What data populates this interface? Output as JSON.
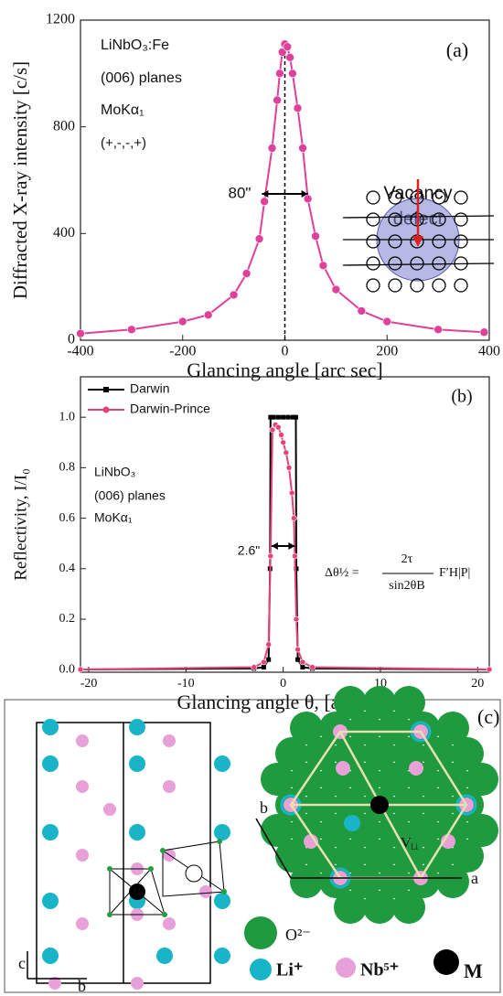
{
  "chart_data": [
    {
      "type": "line",
      "ylabel": "Diffracted X-ray intensity [c/s]",
      "xlabel": "Glancing angle [arc sec]",
      "xlim": [
        -400,
        400
      ],
      "ylim": [
        0,
        1200
      ],
      "xticks": [
        -400,
        -200,
        0,
        200,
        400
      ],
      "yticks": [
        0,
        400,
        800,
        1200
      ],
      "annotations": [
        "LiNbO₃:Fe",
        "(006) planes",
        "MoKα₁",
        "(+,-,-,+)",
        "(a)",
        "Vacancy",
        "defect",
        "80\""
      ],
      "series": [
        {
          "name": "LiNbO₃:Fe",
          "color": "#e0409a",
          "marker": "circle",
          "x": [
            -400,
            -300,
            -200,
            -150,
            -100,
            -75,
            -50,
            -40,
            -25,
            -15,
            -10,
            -5,
            0,
            5,
            10,
            15,
            25,
            35,
            45,
            60,
            75,
            100,
            150,
            200,
            300,
            390
          ],
          "values": [
            25,
            40,
            70,
            95,
            170,
            250,
            380,
            520,
            720,
            900,
            1000,
            1080,
            1110,
            1100,
            1060,
            1000,
            870,
            720,
            530,
            390,
            280,
            190,
            110,
            70,
            40,
            30
          ]
        }
      ]
    },
    {
      "type": "line",
      "ylabel": "Reflectivity, I/I₀",
      "xlabel": "Glancing angle θ, [arc sec]",
      "xlim": [
        -20.85,
        21.2
      ],
      "ylim": [
        -0.01,
        1.16
      ],
      "xticks": [
        -20,
        -10,
        0,
        10,
        20
      ],
      "yticks": [
        {
          "value": 0,
          "label": "0.0"
        },
        0.2,
        0.4,
        0.6,
        0.8,
        {
          "value": 1,
          "label": "1.0"
        }
      ],
      "legend": "upper left",
      "annotations": [
        "LiNbO₃",
        "(006) planes",
        "MoKα₁",
        "2.6\"",
        "(b)",
        "Δθ½ =",
        "2τ",
        "sin2θB",
        "F′H|P|"
      ],
      "series": [
        {
          "name": "Darwin",
          "color": "#000000",
          "marker": "square",
          "x": [
            -20.85,
            -3,
            -2,
            -1.5,
            -1.35,
            -1.3,
            -1,
            -0.5,
            0,
            0.5,
            1,
            1.3,
            1.35,
            1.5,
            2,
            3,
            21.2
          ],
          "values": [
            0.001,
            0.005,
            0.01,
            0.04,
            0.4,
            1,
            1,
            1,
            1,
            1,
            1,
            1,
            0.4,
            0.04,
            0.01,
            0.005,
            0.001
          ]
        },
        {
          "name": "Darwin-Prince",
          "color": "#e8407a",
          "marker": "circle",
          "x": [
            -20.85,
            -3,
            -2,
            -1.5,
            -1.3,
            -1.1,
            -0.8,
            -0.5,
            -0.2,
            0,
            0.3,
            0.6,
            0.9,
            1.1,
            1.2,
            1.35,
            1.5,
            2,
            3,
            21.2
          ],
          "values": [
            0.001,
            0.01,
            0.03,
            0.1,
            0.45,
            0.95,
            0.97,
            0.96,
            0.93,
            0.9,
            0.86,
            0.8,
            0.7,
            0.6,
            0.45,
            0.2,
            0.08,
            0.03,
            0.01,
            0.001
          ]
        }
      ]
    }
  ],
  "diagram": {
    "label": "(c)",
    "axis_labels": [
      "c",
      "b",
      "b",
      "a"
    ],
    "site_labels": [
      "M",
      "V",
      "Li"
    ],
    "legend": [
      "O²⁻",
      "Li⁺",
      "Nb⁵⁺",
      "M"
    ]
  }
}
